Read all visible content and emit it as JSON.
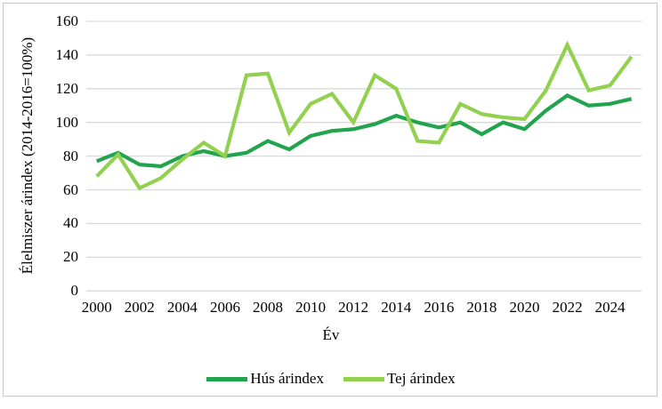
{
  "chart_data": {
    "type": "line",
    "x": [
      2000,
      2001,
      2002,
      2003,
      2004,
      2005,
      2006,
      2007,
      2008,
      2009,
      2010,
      2011,
      2012,
      2013,
      2014,
      2015,
      2016,
      2017,
      2018,
      2019,
      2020,
      2021,
      2022,
      2023,
      2024,
      2025
    ],
    "series": [
      {
        "name": "Hús árindex",
        "color": "#21A44D",
        "values": [
          77,
          82,
          75,
          74,
          80,
          83,
          80,
          82,
          89,
          84,
          92,
          95,
          96,
          99,
          104,
          100,
          97,
          100,
          93,
          100,
          96,
          107,
          116,
          110,
          111,
          114
        ]
      },
      {
        "name": "Tej árindex",
        "color": "#92D050",
        "values": [
          68,
          81,
          61,
          67,
          78,
          88,
          80,
          128,
          129,
          94,
          111,
          117,
          100,
          128,
          120,
          89,
          88,
          111,
          105,
          103,
          102,
          119,
          146,
          119,
          122,
          139
        ]
      }
    ],
    "title": "",
    "xlabel": "Év",
    "ylabel": "Élelmiszer árindex (2014-2016=100%)",
    "ylim": [
      0,
      160
    ],
    "yticks": [
      0,
      20,
      40,
      60,
      80,
      100,
      120,
      140,
      160
    ],
    "xticks": [
      2000,
      2002,
      2004,
      2006,
      2008,
      2010,
      2012,
      2014,
      2016,
      2018,
      2020,
      2022,
      2024
    ],
    "grid": "horizontal",
    "gridline_color": "#D9D9D9",
    "legend_position": "bottom"
  },
  "frame": {
    "border_color": "#C6C6C6",
    "background": "#FFFFFF"
  }
}
